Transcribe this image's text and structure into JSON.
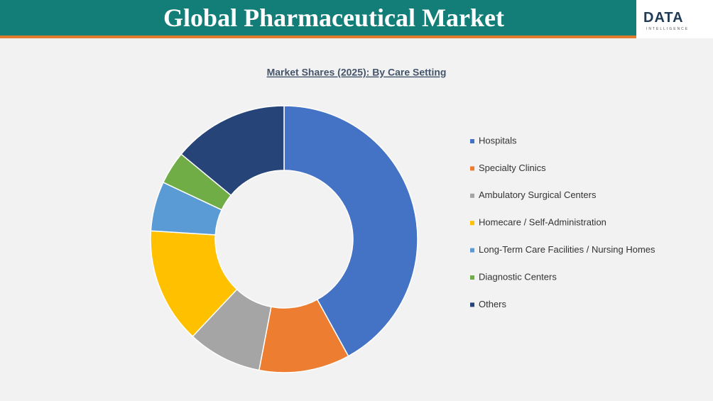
{
  "header": {
    "title": "Global Pharmaceutical Market",
    "logo": "DATA",
    "logo_sub": "INTELLIGENCE"
  },
  "chart_data": {
    "type": "donut",
    "title": "Market Shares (2025): By Care Setting",
    "categories": [
      "Hospitals",
      "Specialty Clinics",
      "Ambulatory Surgical Centers",
      "Homecare / Self-Administration",
      "Long-Term Care Facilities / Nursing Homes",
      "Diagnostic Centers",
      "Others"
    ],
    "values": [
      42,
      11,
      9,
      14,
      6,
      4,
      14
    ],
    "colors": [
      "#4472c4",
      "#ed7d31",
      "#a5a5a5",
      "#ffc000",
      "#5b9bd5",
      "#70ad47",
      "#264478"
    ],
    "legend": "right"
  }
}
